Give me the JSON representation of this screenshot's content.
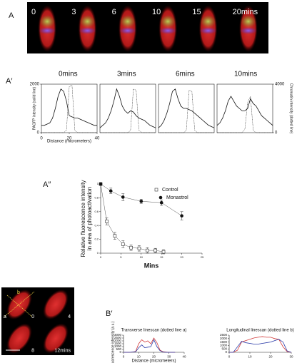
{
  "panels": {
    "a": "A",
    "a1": "A′",
    "a2": "A″",
    "b": "B",
    "b1": "B′"
  },
  "images": {
    "a_times": [
      "0",
      "3",
      "6",
      "10",
      "15",
      "20mins"
    ],
    "b_lines": [
      "b",
      "a"
    ],
    "b_times": [
      "0",
      "4",
      "8",
      "12mins"
    ]
  },
  "chart_data": [
    {
      "type": "line",
      "title": "0mins",
      "ylabel": "PAGFP intensity (solid line)",
      "xlabel": "Distance (micrometers)",
      "x": [
        0,
        2,
        4,
        6,
        8,
        10,
        12,
        14,
        16,
        18,
        20,
        22,
        24,
        26,
        28,
        30,
        32,
        34,
        36,
        38,
        40
      ],
      "xlim": [
        0,
        40
      ],
      "ylim": [
        0,
        2000
      ],
      "y2lim": [
        0,
        4000
      ],
      "xticks": [
        0,
        20,
        40
      ],
      "yticks": [
        0,
        2000
      ],
      "series": [
        {
          "color": "#111111",
          "style": "solid",
          "values": [
            300,
            300,
            350,
            400,
            600,
            1000,
            1500,
            1800,
            1700,
            1300,
            700,
            650,
            600,
            600,
            550,
            500,
            450,
            400,
            350,
            300,
            300
          ]
        },
        {
          "color": "#111111",
          "style": "dotted",
          "axis": "y2",
          "values": [
            0,
            0,
            0,
            0,
            0,
            0,
            0,
            0,
            0,
            200,
            3800,
            3900,
            200,
            0,
            0,
            0,
            0,
            0,
            0,
            0,
            0
          ]
        }
      ]
    },
    {
      "type": "line",
      "title": "3mins",
      "x": [
        0,
        2,
        4,
        6,
        8,
        10,
        12,
        14,
        16,
        18,
        20,
        22,
        24,
        26,
        28,
        30,
        32,
        34,
        36,
        38,
        40
      ],
      "xlim": [
        0,
        40
      ],
      "ylim": [
        0,
        2000
      ],
      "y2lim": [
        0,
        4000
      ],
      "series": [
        {
          "color": "#111111",
          "style": "solid",
          "values": [
            200,
            300,
            400,
            600,
            900,
            1300,
            1800,
            1500,
            1100,
            900,
            800,
            900,
            850,
            700,
            600,
            550,
            500,
            400,
            300,
            250,
            200
          ]
        },
        {
          "color": "#111111",
          "style": "dotted",
          "axis": "y2",
          "values": [
            0,
            0,
            0,
            0,
            0,
            0,
            0,
            0,
            0,
            0,
            0,
            200,
            3600,
            3500,
            200,
            0,
            0,
            0,
            0,
            0,
            0
          ]
        }
      ]
    },
    {
      "type": "line",
      "title": "6mins",
      "x": [
        0,
        2,
        4,
        6,
        8,
        10,
        12,
        14,
        16,
        18,
        20,
        22,
        24,
        26,
        28,
        30,
        32,
        34,
        36,
        38,
        40
      ],
      "xlim": [
        0,
        40
      ],
      "ylim": [
        0,
        2000
      ],
      "y2lim": [
        0,
        4000
      ],
      "series": [
        {
          "color": "#111111",
          "style": "solid",
          "values": [
            200,
            300,
            500,
            800,
            1200,
            1700,
            1800,
            1400,
            1100,
            1000,
            1000,
            950,
            900,
            800,
            700,
            600,
            500,
            400,
            300,
            250,
            200
          ]
        },
        {
          "color": "#111111",
          "style": "dotted",
          "axis": "y2",
          "values": [
            0,
            0,
            0,
            0,
            0,
            0,
            0,
            0,
            0,
            0,
            200,
            3500,
            3400,
            200,
            0,
            0,
            0,
            0,
            0,
            0,
            0
          ]
        }
      ]
    },
    {
      "type": "line",
      "title": "10mins",
      "y2label": "Chromatin intensity (dotted line)",
      "x": [
        0,
        2,
        4,
        6,
        8,
        10,
        12,
        14,
        16,
        18,
        20,
        22,
        24,
        26,
        28,
        30,
        32,
        34,
        36,
        38,
        40
      ],
      "xlim": [
        0,
        40
      ],
      "ylim": [
        0,
        2000
      ],
      "y2lim": [
        0,
        4000
      ],
      "y2ticks": [
        0,
        4000
      ],
      "series": [
        {
          "color": "#111111",
          "style": "solid",
          "values": [
            300,
            400,
            600,
            900,
            1300,
            1500,
            1300,
            1100,
            1000,
            900,
            900,
            1000,
            1400,
            1200,
            1100,
            900,
            700,
            600,
            500,
            400,
            300
          ]
        },
        {
          "color": "#111111",
          "style": "dotted",
          "axis": "y2",
          "values": [
            0,
            0,
            0,
            0,
            0,
            0,
            0,
            0,
            0,
            0,
            300,
            2500,
            3000,
            200,
            0,
            0,
            0,
            0,
            0,
            0,
            0
          ]
        }
      ]
    },
    {
      "type": "scatter",
      "xlabel": "Mins",
      "ylabel": [
        "Relative fluorescence intensity",
        "in area of photoactivation"
      ],
      "xlim": [
        0,
        25
      ],
      "ylim": [
        0,
        1
      ],
      "xticks": [
        0,
        5,
        10,
        15,
        20,
        25
      ],
      "yticks": [
        0,
        0.2,
        0.4,
        0.6,
        0.8,
        1
      ],
      "series": [
        {
          "name": "Control",
          "marker": "open-square",
          "color": "#333333",
          "x": [
            0,
            1.5,
            3.5,
            5.5,
            7.5,
            9.5,
            11.5,
            13.5,
            15.5
          ],
          "values": [
            1,
            0.46,
            0.25,
            0.13,
            0.08,
            0.07,
            0.04,
            0.04,
            0.02
          ],
          "errors": [
            0.02,
            0.05,
            0.05,
            0.05,
            0.04,
            0.04,
            0.04,
            0.03,
            0.03
          ]
        },
        {
          "name": "Monastrol",
          "marker": "filled-circle",
          "color": "#111111",
          "x": [
            0,
            2.5,
            5.5,
            10,
            15,
            20
          ],
          "values": [
            1,
            0.9,
            0.81,
            0.75,
            0.73,
            0.54
          ],
          "errors": [
            0.02,
            0.04,
            0.05,
            0.03,
            0.04,
            0.06
          ]
        }
      ]
    },
    {
      "type": "line",
      "title": "Transverse linescan (dotted line a)",
      "ylabel": "Fluorescence intensity (a.u.)",
      "xlabel": "Distance (micrometers)",
      "x": [
        0,
        2,
        4,
        6,
        8,
        10,
        12,
        14,
        16,
        18,
        20,
        22,
        24,
        26,
        28,
        30,
        32,
        34
      ],
      "xlim": [
        0,
        40
      ],
      "ylim": [
        0,
        3000
      ],
      "xticks": [
        0,
        10,
        20,
        30,
        40
      ],
      "yticks": [
        0,
        500,
        1000,
        1500,
        2000,
        2500,
        3000
      ],
      "series": [
        {
          "color": "#d23a3a",
          "style": "solid",
          "values": [
            0,
            0,
            0,
            50,
            150,
            1500,
            2200,
            1800,
            2000,
            1500,
            2500,
            1700,
            400,
            100,
            50,
            0,
            0,
            0
          ]
        },
        {
          "color": "#2a3aa8",
          "style": "solid",
          "values": [
            0,
            0,
            0,
            50,
            100,
            800,
            1300,
            800,
            900,
            1000,
            2200,
            1000,
            300,
            50,
            0,
            0,
            0,
            0
          ]
        }
      ]
    },
    {
      "type": "line",
      "title": "Longitudinal linescan (dotted line b)",
      "x": [
        0,
        2,
        4,
        6,
        8,
        10,
        12,
        14,
        16,
        18,
        20,
        22,
        24,
        26,
        28,
        30
      ],
      "xlim": [
        0,
        30
      ],
      "ylim": [
        0,
        2500
      ],
      "xticks": [
        0,
        10,
        20,
        30
      ],
      "yticks": [
        0,
        500,
        1000,
        1500,
        2000,
        2500
      ],
      "series": [
        {
          "color": "#d23a3a",
          "style": "solid",
          "values": [
            0,
            0,
            300,
            1500,
            1700,
            1900,
            2100,
            2200,
            2300,
            2200,
            2200,
            2000,
            1900,
            800,
            100,
            0
          ]
        },
        {
          "color": "#2a3aa8",
          "style": "solid",
          "values": [
            0,
            0,
            800,
            1600,
            1400,
            1300,
            1200,
            1200,
            1300,
            1400,
            1500,
            1700,
            1900,
            1500,
            200,
            0
          ]
        }
      ]
    }
  ]
}
